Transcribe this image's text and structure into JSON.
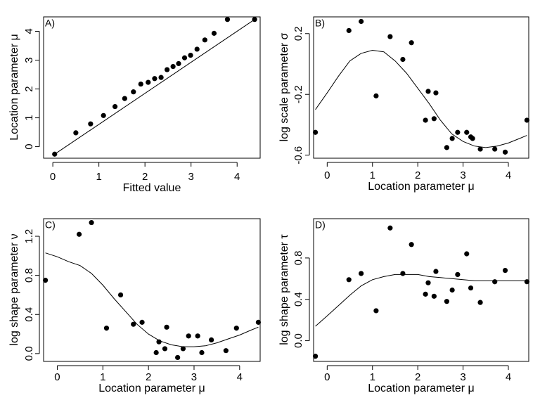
{
  "chart_data": [
    {
      "type": "scatter",
      "panel_label": "A)",
      "xlabel": "Fitted value",
      "ylabel": "Location parameter μ",
      "xlim": [
        -0.2,
        4.5
      ],
      "ylim": [
        -0.4,
        4.5
      ],
      "xticks": [
        0,
        1,
        2,
        3,
        4
      ],
      "yticks": [
        0,
        1,
        2,
        3,
        4
      ],
      "grid": false,
      "series": [
        {
          "kind": "points",
          "x": [
            0.04,
            0.5,
            0.82,
            1.1,
            1.35,
            1.56,
            1.75,
            1.91,
            2.07,
            2.21,
            2.35,
            2.48,
            2.61,
            2.73,
            2.86,
            2.99,
            3.13,
            3.3,
            3.5,
            3.79,
            4.38
          ],
          "y": [
            -0.26,
            0.48,
            0.79,
            1.08,
            1.39,
            1.67,
            1.9,
            2.17,
            2.23,
            2.36,
            2.4,
            2.67,
            2.78,
            2.88,
            3.08,
            3.17,
            3.38,
            3.7,
            3.93,
            4.41,
            4.41
          ]
        },
        {
          "kind": "line",
          "x": [
            0.04,
            4.38
          ],
          "y": [
            -0.26,
            4.41
          ]
        }
      ]
    },
    {
      "type": "scatter",
      "panel_label": "B)",
      "xlabel": "Location parameter μ",
      "ylabel": "log scale parameter σ",
      "xlim": [
        -0.3,
        4.45
      ],
      "ylim": [
        -0.62,
        0.31
      ],
      "xticks": [
        0,
        1,
        2,
        3,
        4
      ],
      "yticks": [
        -0.6,
        -0.2,
        0.2
      ],
      "grid": false,
      "series": [
        {
          "kind": "points",
          "x": [
            -0.26,
            0.48,
            0.75,
            1.08,
            1.39,
            1.67,
            1.86,
            2.17,
            2.23,
            2.36,
            2.4,
            2.64,
            2.76,
            2.88,
            3.08,
            3.17,
            3.21,
            3.38,
            3.7,
            3.93,
            4.41
          ],
          "y": [
            -0.45,
            0.22,
            0.28,
            -0.21,
            0.18,
            0.03,
            0.14,
            -0.37,
            -0.18,
            -0.36,
            -0.19,
            -0.55,
            -0.49,
            -0.45,
            -0.45,
            -0.48,
            -0.49,
            -0.56,
            -0.56,
            -0.58,
            -0.37
          ]
        },
        {
          "kind": "line",
          "x": [
            -0.26,
            0.0,
            0.25,
            0.5,
            0.75,
            1.0,
            1.25,
            1.5,
            1.75,
            2.0,
            2.25,
            2.5,
            2.75,
            3.0,
            3.25,
            3.5,
            3.75,
            4.0,
            4.25,
            4.41
          ],
          "y": [
            -0.3,
            -0.19,
            -0.08,
            0.02,
            0.07,
            0.09,
            0.08,
            0.02,
            -0.06,
            -0.16,
            -0.26,
            -0.37,
            -0.46,
            -0.51,
            -0.54,
            -0.55,
            -0.54,
            -0.52,
            -0.49,
            -0.47
          ]
        }
      ]
    },
    {
      "type": "scatter",
      "panel_label": "C)",
      "xlabel": "Location parameter μ",
      "ylabel": "log shape parameter ν",
      "xlim": [
        -0.3,
        4.45
      ],
      "ylim": [
        -0.08,
        1.38
      ],
      "xticks": [
        0,
        1,
        2,
        3,
        4
      ],
      "yticks": [
        0.0,
        0.4,
        0.8,
        1.2
      ],
      "grid": false,
      "series": [
        {
          "kind": "points",
          "x": [
            -0.26,
            0.48,
            0.75,
            1.08,
            1.39,
            1.67,
            1.86,
            2.17,
            2.23,
            2.36,
            2.4,
            2.64,
            2.76,
            2.88,
            3.08,
            3.17,
            3.38,
            3.7,
            3.93,
            4.41
          ],
          "y": [
            0.75,
            1.22,
            1.34,
            0.26,
            0.6,
            0.3,
            0.32,
            0.01,
            0.12,
            0.05,
            0.27,
            -0.04,
            0.05,
            0.18,
            0.18,
            0.01,
            0.14,
            0.03,
            0.26,
            0.32
          ]
        },
        {
          "kind": "line",
          "x": [
            -0.26,
            0.0,
            0.25,
            0.5,
            0.75,
            1.0,
            1.25,
            1.5,
            1.75,
            2.0,
            2.25,
            2.5,
            2.75,
            3.0,
            3.25,
            3.5,
            3.75,
            4.0,
            4.25,
            4.41
          ],
          "y": [
            1.03,
            0.99,
            0.94,
            0.9,
            0.82,
            0.7,
            0.56,
            0.43,
            0.3,
            0.2,
            0.13,
            0.09,
            0.07,
            0.07,
            0.08,
            0.11,
            0.15,
            0.19,
            0.24,
            0.27
          ]
        }
      ]
    },
    {
      "type": "scatter",
      "panel_label": "D)",
      "xlabel": "Location parameter μ",
      "ylabel": "log shape parameter τ",
      "xlim": [
        -0.3,
        4.45
      ],
      "ylim": [
        -0.2,
        1.18
      ],
      "xticks": [
        0,
        1,
        2,
        3,
        4
      ],
      "yticks": [
        0.0,
        0.4,
        0.8
      ],
      "grid": false,
      "series": [
        {
          "kind": "points",
          "x": [
            -0.26,
            0.48,
            0.75,
            1.08,
            1.39,
            1.67,
            1.86,
            2.17,
            2.23,
            2.36,
            2.4,
            2.64,
            2.76,
            2.88,
            3.08,
            3.17,
            3.38,
            3.7,
            3.93,
            4.41
          ],
          "y": [
            -0.15,
            0.59,
            0.65,
            0.29,
            1.09,
            0.65,
            0.93,
            0.45,
            0.56,
            0.43,
            0.67,
            0.38,
            0.49,
            0.64,
            0.84,
            0.51,
            0.37,
            0.57,
            0.68,
            0.57
          ]
        },
        {
          "kind": "line",
          "x": [
            -0.26,
            0.0,
            0.25,
            0.5,
            0.75,
            1.0,
            1.25,
            1.5,
            1.75,
            2.0,
            2.25,
            2.5,
            2.75,
            3.0,
            3.25,
            3.5,
            3.75,
            4.0,
            4.25,
            4.41
          ],
          "y": [
            0.14,
            0.24,
            0.34,
            0.44,
            0.53,
            0.59,
            0.62,
            0.64,
            0.64,
            0.64,
            0.62,
            0.61,
            0.6,
            0.59,
            0.58,
            0.58,
            0.58,
            0.58,
            0.58,
            0.58
          ]
        }
      ]
    }
  ]
}
